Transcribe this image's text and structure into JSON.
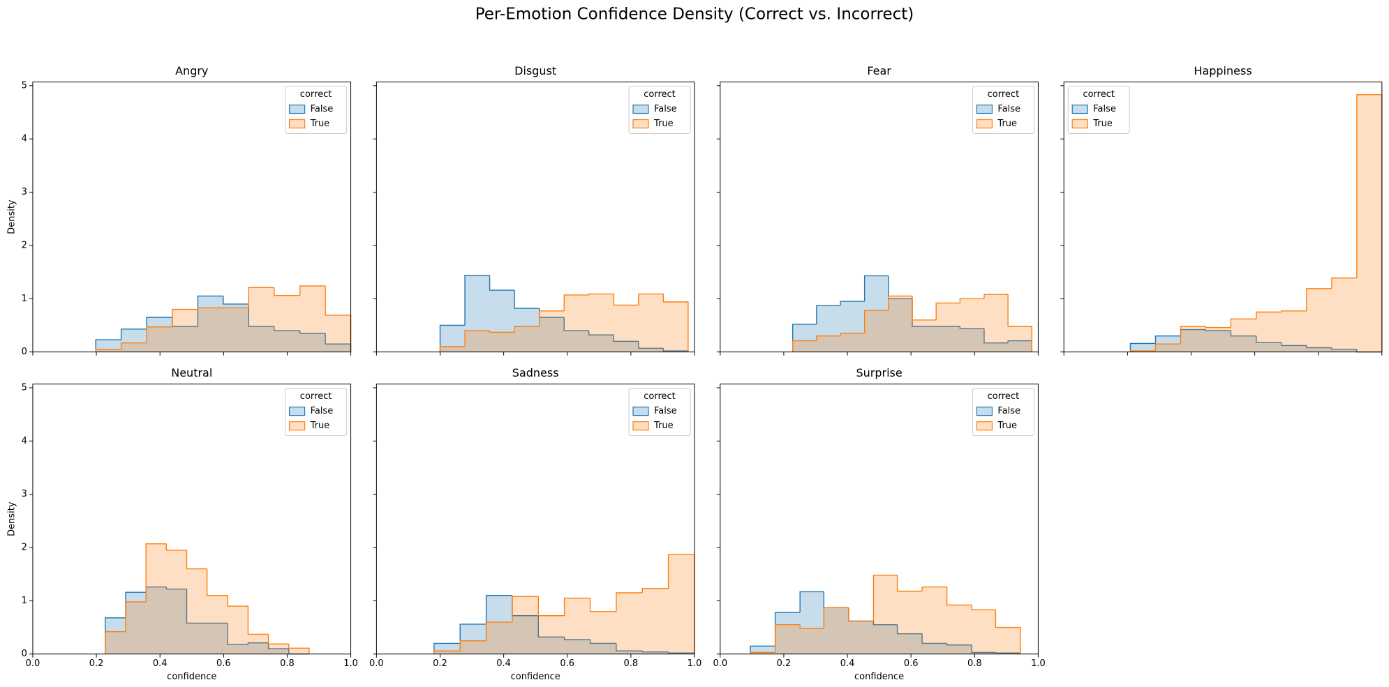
{
  "title": "Per-Emotion Confidence Density (Correct vs. Incorrect)",
  "chart_data": [
    {
      "type": "histogram",
      "title": "Angry",
      "ylabel": "Density",
      "legend": "upper right",
      "legend_title": "correct",
      "bins": [
        0.198,
        0.278,
        0.358,
        0.439,
        0.519,
        0.599,
        0.679,
        0.759,
        0.84,
        0.92,
        1.0
      ],
      "series": [
        {
          "name": "False",
          "color": "#1f77b4",
          "values": [
            0.23,
            0.43,
            0.65,
            0.48,
            1.05,
            0.9,
            0.48,
            0.4,
            0.35,
            0.15
          ]
        },
        {
          "name": "True",
          "color": "#ff7f0e",
          "values": [
            0.05,
            0.17,
            0.47,
            0.8,
            0.83,
            0.83,
            1.21,
            1.06,
            1.24,
            0.69
          ]
        }
      ],
      "xlim": [
        0,
        1
      ],
      "xticks": [
        {
          "value": 0,
          "label": "0.0"
        },
        0.2,
        0.4,
        0.6,
        0.8,
        {
          "value": 1,
          "label": "1.0"
        }
      ],
      "ylim": [
        0,
        5.07
      ],
      "yticks": [
        0,
        1,
        2,
        3,
        4,
        5
      ]
    },
    {
      "type": "histogram",
      "title": "Disgust",
      "legend": "upper right",
      "legend_title": "correct",
      "bins": [
        0.2,
        0.278,
        0.356,
        0.434,
        0.512,
        0.59,
        0.668,
        0.746,
        0.824,
        0.902,
        0.98
      ],
      "series": [
        {
          "name": "False",
          "color": "#1f77b4",
          "values": [
            0.5,
            1.44,
            1.16,
            0.82,
            0.65,
            0.4,
            0.32,
            0.2,
            0.07,
            0.02
          ]
        },
        {
          "name": "True",
          "color": "#ff7f0e",
          "values": [
            0.1,
            0.4,
            0.37,
            0.48,
            0.77,
            1.07,
            1.09,
            0.88,
            1.09,
            0.94
          ]
        }
      ],
      "xlim": [
        0,
        1
      ],
      "xticks": [
        {
          "value": 0,
          "label": "0.0"
        },
        0.2,
        0.4,
        0.6,
        0.8,
        {
          "value": 1,
          "label": "1.0"
        }
      ],
      "ylim": [
        0,
        5.07
      ],
      "yticks": [
        0,
        1,
        2,
        3,
        4,
        5
      ]
    },
    {
      "type": "histogram",
      "title": "Fear",
      "legend": "upper right",
      "legend_title": "correct",
      "bins": [
        0.228,
        0.303,
        0.378,
        0.454,
        0.529,
        0.604,
        0.679,
        0.754,
        0.83,
        0.905,
        0.98
      ],
      "series": [
        {
          "name": "False",
          "color": "#1f77b4",
          "values": [
            0.52,
            0.87,
            0.95,
            1.43,
            1.0,
            0.48,
            0.48,
            0.44,
            0.17,
            0.21
          ]
        },
        {
          "name": "True",
          "color": "#ff7f0e",
          "values": [
            0.21,
            0.3,
            0.35,
            0.78,
            1.05,
            0.6,
            0.92,
            1.0,
            1.08,
            0.48
          ]
        }
      ],
      "xlim": [
        0,
        1
      ],
      "xticks": [
        {
          "value": 0,
          "label": "0.0"
        },
        0.2,
        0.4,
        0.6,
        0.8,
        {
          "value": 1,
          "label": "1.0"
        }
      ],
      "ylim": [
        0,
        5.07
      ],
      "yticks": [
        0,
        1,
        2,
        3,
        4,
        5
      ]
    },
    {
      "type": "histogram",
      "title": "Happiness",
      "legend": "upper left",
      "legend_title": "correct",
      "bins": [
        0.209,
        0.288,
        0.367,
        0.446,
        0.525,
        0.605,
        0.684,
        0.763,
        0.842,
        0.921,
        1.0
      ],
      "series": [
        {
          "name": "False",
          "color": "#1f77b4",
          "values": [
            0.16,
            0.3,
            0.42,
            0.4,
            0.3,
            0.18,
            0.12,
            0.08,
            0.05,
            0
          ]
        },
        {
          "name": "True",
          "color": "#ff7f0e",
          "values": [
            0.02,
            0.15,
            0.48,
            0.46,
            0.62,
            0.75,
            0.77,
            1.19,
            1.39,
            4.83
          ]
        }
      ],
      "xlim": [
        0,
        1
      ],
      "xticks": [
        {
          "value": 0,
          "label": "0.0"
        },
        0.2,
        0.4,
        0.6,
        0.8,
        {
          "value": 1,
          "label": "1.0"
        }
      ],
      "ylim": [
        0,
        5.07
      ],
      "yticks": [
        0,
        1,
        2,
        3,
        4,
        5
      ]
    },
    {
      "type": "histogram",
      "title": "Neutral",
      "xlabel": "confidence",
      "ylabel": "Density",
      "legend": "upper right",
      "legend_title": "correct",
      "bins": [
        0.228,
        0.292,
        0.356,
        0.42,
        0.484,
        0.548,
        0.613,
        0.677,
        0.741,
        0.805,
        0.869
      ],
      "series": [
        {
          "name": "False",
          "color": "#1f77b4",
          "values": [
            0.68,
            1.16,
            1.26,
            1.22,
            0.58,
            0.58,
            0.18,
            0.21,
            0.1,
            0
          ]
        },
        {
          "name": "True",
          "color": "#ff7f0e",
          "values": [
            0.42,
            0.98,
            2.07,
            1.95,
            1.6,
            1.1,
            0.9,
            0.37,
            0.19,
            0.11
          ]
        }
      ],
      "xlim": [
        0,
        1
      ],
      "xticks": [
        {
          "value": 0,
          "label": "0.0"
        },
        0.2,
        0.4,
        0.6,
        0.8,
        {
          "value": 1,
          "label": "1.0"
        }
      ],
      "ylim": [
        0,
        5.07
      ],
      "yticks": [
        0,
        1,
        2,
        3,
        4,
        5
      ]
    },
    {
      "type": "histogram",
      "title": "Sadness",
      "xlabel": "confidence",
      "legend": "upper right",
      "legend_title": "correct",
      "bins": [
        0.181,
        0.263,
        0.345,
        0.427,
        0.509,
        0.591,
        0.672,
        0.754,
        0.836,
        0.918,
        1.0
      ],
      "series": [
        {
          "name": "False",
          "color": "#1f77b4",
          "values": [
            0.2,
            0.56,
            1.1,
            0.72,
            0.32,
            0.27,
            0.2,
            0.06,
            0.04,
            0.02
          ]
        },
        {
          "name": "True",
          "color": "#ff7f0e",
          "values": [
            0.06,
            0.25,
            0.6,
            1.08,
            0.72,
            1.05,
            0.8,
            1.15,
            1.23,
            1.87
          ]
        }
      ],
      "xlim": [
        0,
        1
      ],
      "xticks": [
        {
          "value": 0,
          "label": "0.0"
        },
        0.2,
        0.4,
        0.6,
        0.8,
        {
          "value": 1,
          "label": "1.0"
        }
      ],
      "ylim": [
        0,
        5.07
      ],
      "yticks": [
        0,
        1,
        2,
        3,
        4,
        5
      ]
    },
    {
      "type": "histogram",
      "title": "Surprise",
      "xlabel": "confidence",
      "legend": "upper right",
      "legend_title": "correct",
      "bins": [
        0.095,
        0.173,
        0.251,
        0.326,
        0.404,
        0.482,
        0.557,
        0.635,
        0.713,
        0.791,
        0.866,
        0.944
      ],
      "series": [
        {
          "name": "False",
          "color": "#1f77b4",
          "values": [
            0.15,
            0.78,
            1.17,
            0.87,
            0.62,
            0.55,
            0.38,
            0.2,
            0.17,
            0.03,
            0.02
          ]
        },
        {
          "name": "True",
          "color": "#ff7f0e",
          "values": [
            0.03,
            0.55,
            0.48,
            0.87,
            0.62,
            1.48,
            1.18,
            1.26,
            0.92,
            0.83,
            0.5
          ]
        }
      ],
      "xlim": [
        0,
        1
      ],
      "xticks": [
        {
          "value": 0,
          "label": "0.0"
        },
        0.2,
        0.4,
        0.6,
        0.8,
        {
          "value": 1,
          "label": "1.0"
        }
      ],
      "ylim": [
        0,
        5.07
      ],
      "yticks": [
        0,
        1,
        2,
        3,
        4,
        5
      ]
    }
  ]
}
